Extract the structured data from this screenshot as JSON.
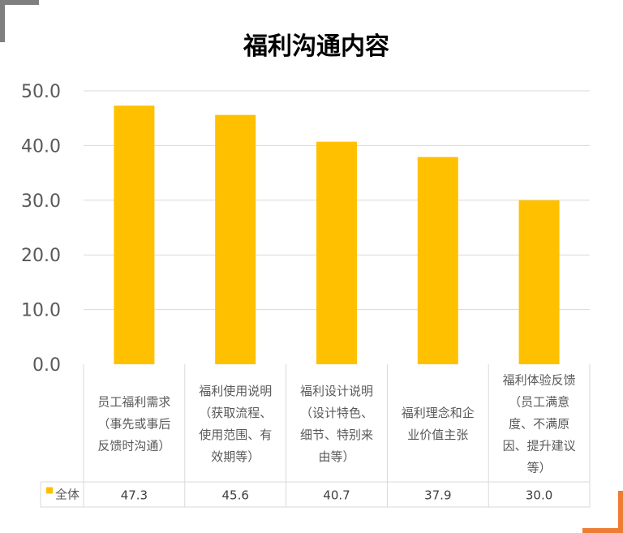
{
  "chart_data": {
    "type": "bar",
    "title": "福利沟通内容",
    "categories": [
      [
        "员工福利需求",
        "（事先或事后",
        "反馈时沟通）"
      ],
      [
        "福利使用说明",
        "（获取流程、",
        "使用范围、有",
        "效期等）"
      ],
      [
        "福利设计说明",
        "（设计特色、",
        "细节、特别来",
        "由等）"
      ],
      [
        "福利理念和企",
        "业价值主张"
      ],
      [
        "福利体验反馈",
        "（员工满意",
        "度、不满原",
        "因、提升建议",
        "等）"
      ]
    ],
    "series": [
      {
        "name": "全体",
        "values": [
          47.3,
          45.6,
          40.7,
          37.9,
          30.0
        ],
        "value_labels": [
          "47.3",
          "45.6",
          "40.7",
          "37.9",
          "30.0"
        ],
        "color": "#ffc000"
      }
    ],
    "ylim": [
      0,
      50
    ],
    "yticks": [
      "0.0",
      "10.0",
      "20.0",
      "30.0",
      "40.0",
      "50.0"
    ],
    "grid": true,
    "legend": "data-table"
  }
}
